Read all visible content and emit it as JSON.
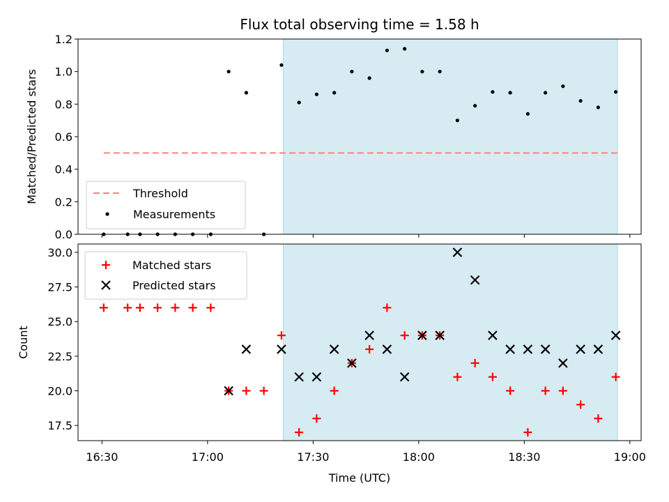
{
  "chart_data": {
    "title": "Flux total observing time = 1.58 h",
    "xlabel": "Time (UTC)",
    "x_ticks": [
      "16:30",
      "17:00",
      "17:30",
      "18:00",
      "18:30",
      "19:00"
    ],
    "x_tick_minutes": [
      990,
      1020,
      1050,
      1080,
      1110,
      1140
    ],
    "xlim_minutes": [
      983.2,
      1143.2
    ],
    "shaded_region_minutes": [
      1041.5,
      1136.5
    ],
    "colors": {
      "shade": "#add8e6",
      "threshold": "#ff7f7f",
      "matched": "#ff0000",
      "predicted": "#000000",
      "measurement": "#000000"
    },
    "panels": [
      {
        "type": "scatter",
        "ylabel": "Matched/Predicted stars",
        "ylim": [
          0,
          1.2
        ],
        "y_ticks": [
          "0.0",
          "0.2",
          "0.4",
          "0.6",
          "0.8",
          "1.0",
          "1.2"
        ],
        "y_tick_values": [
          0,
          0.2,
          0.4,
          0.6,
          0.8,
          1.0,
          1.2
        ],
        "threshold": {
          "label": "Threshold",
          "value": 0.5,
          "x_range_minutes": [
            990.5,
            1136.5
          ]
        },
        "series": [
          {
            "name": "Measurements",
            "x_minutes": [
              990.5,
              997.3,
              1000.8,
              1005.8,
              1010.8,
              1015.8,
              1020.9,
              1026.0,
              1031.0,
              1036.0,
              1041.0,
              1046.0,
              1051.0,
              1056.0,
              1061.0,
              1066.0,
              1071.0,
              1076.0,
              1081.0,
              1086.0,
              1091.0,
              1096.0,
              1101.0,
              1106.0,
              1111.0,
              1116.0,
              1121.0,
              1126.0,
              1131.0,
              1136.0
            ],
            "y": [
              0,
              0,
              0,
              0,
              0,
              0,
              0,
              1.0,
              0.87,
              0,
              1.04,
              0.81,
              0.86,
              0.87,
              1.0,
              0.96,
              1.13,
              1.14,
              1.0,
              1.0,
              0.7,
              0.79,
              0.875,
              0.87,
              0.74,
              0.87,
              0.91,
              0.82,
              0.78,
              0.875
            ]
          }
        ],
        "legend": {
          "position": "lower-left",
          "entries": [
            "Threshold",
            "Measurements"
          ]
        }
      },
      {
        "type": "scatter",
        "ylabel": "Count",
        "ylim": [
          16.4,
          30.6
        ],
        "y_ticks": [
          "17.5",
          "20.0",
          "22.5",
          "25.0",
          "27.5",
          "30.0"
        ],
        "y_tick_values": [
          17.5,
          20.0,
          22.5,
          25.0,
          27.5,
          30.0
        ],
        "series": [
          {
            "name": "Matched stars",
            "x_minutes": [
              990.5,
              997.3,
              1000.8,
              1005.8,
              1010.8,
              1015.8,
              1020.9,
              1026.0,
              1031.0,
              1036.0,
              1041.0,
              1046.0,
              1051.0,
              1056.0,
              1061.0,
              1066.0,
              1071.0,
              1076.0,
              1081.0,
              1086.0,
              1091.0,
              1096.0,
              1101.0,
              1106.0,
              1111.0,
              1116.0,
              1121.0,
              1126.0,
              1131.0,
              1136.0
            ],
            "y": [
              26,
              26,
              26,
              26,
              26,
              26,
              26,
              20,
              20,
              20,
              24,
              17,
              18,
              20,
              22,
              23,
              26,
              24,
              24,
              24,
              21,
              22,
              21,
              20,
              17,
              20,
              20,
              19,
              18,
              21
            ]
          },
          {
            "name": "Predicted stars",
            "x_minutes": [
              1026.0,
              1031.0,
              1041.0,
              1046.0,
              1051.0,
              1056.0,
              1061.0,
              1066.0,
              1071.0,
              1076.0,
              1081.0,
              1086.0,
              1091.0,
              1096.0,
              1101.0,
              1106.0,
              1111.0,
              1116.0,
              1121.0,
              1126.0,
              1131.0,
              1136.0
            ],
            "y": [
              20,
              23,
              23,
              21,
              21,
              23,
              22,
              24,
              23,
              21,
              24,
              24,
              30,
              28,
              24,
              23,
              23,
              23,
              22,
              23,
              23,
              24
            ]
          }
        ],
        "legend": {
          "position": "upper-left",
          "entries": [
            "Matched stars",
            "Predicted stars"
          ]
        }
      }
    ]
  }
}
